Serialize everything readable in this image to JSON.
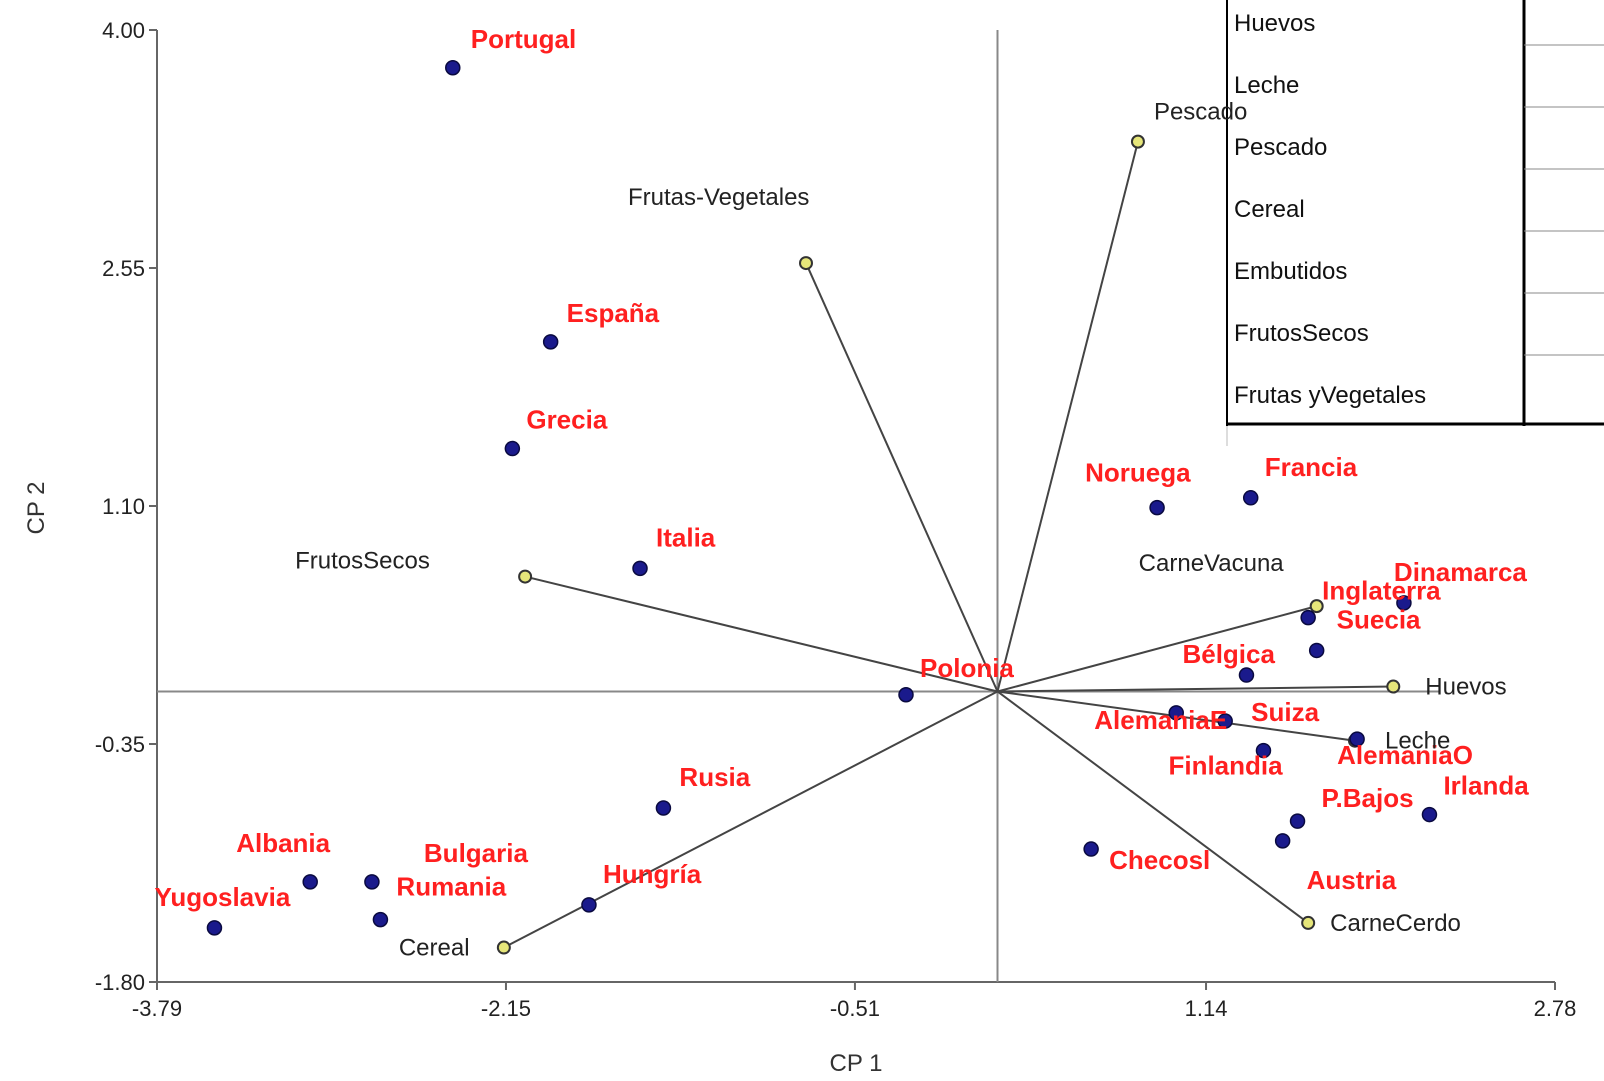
{
  "chart_data": {
    "type": "scatter",
    "title": "",
    "xlabel": "CP 1",
    "ylabel": "CP 2",
    "xlim": [
      -3.79,
      2.78
    ],
    "ylim": [
      -1.8,
      4.0
    ],
    "x_ticks": [
      "-3.79",
      "-2.15",
      "-0.51",
      "1.14",
      "2.78"
    ],
    "y_ticks": [
      "-1.80",
      "-0.35",
      "1.10",
      "2.55",
      "4.00"
    ],
    "reference_lines": {
      "x": 0.16,
      "y": -0.03
    },
    "grid": false,
    "colors": {
      "country_point": "#1a1a8c",
      "country_label": "#ff2020",
      "variable_point": "#e6e67a",
      "variable_label": "#222222",
      "axis": "#888888",
      "vector_line": "#444444"
    },
    "countries": [
      {
        "name": "Portugal",
        "x": -2.4,
        "y": 3.77
      },
      {
        "name": "España",
        "x": -1.94,
        "y": 2.1
      },
      {
        "name": "Grecia",
        "x": -2.12,
        "y": 1.45
      },
      {
        "name": "Italia",
        "x": -1.52,
        "y": 0.72
      },
      {
        "name": "Noruega",
        "x": 0.91,
        "y": 1.09
      },
      {
        "name": "Francia",
        "x": 1.35,
        "y": 1.15
      },
      {
        "name": "Dinamarca",
        "x": 2.07,
        "y": 0.51
      },
      {
        "name": "Inglaterra",
        "x": 1.62,
        "y": 0.42
      },
      {
        "name": "Suecia",
        "x": 1.66,
        "y": 0.22
      },
      {
        "name": "Bélgica",
        "x": 1.33,
        "y": 0.07
      },
      {
        "name": "Polonia",
        "x": -0.27,
        "y": -0.05
      },
      {
        "name": "AlemaniaE",
        "x": 1.0,
        "y": -0.16
      },
      {
        "name": "Suiza",
        "x": 1.23,
        "y": -0.21
      },
      {
        "name": "AlemaniaO",
        "x": 1.85,
        "y": -0.32
      },
      {
        "name": "Finlandia",
        "x": 1.41,
        "y": -0.39
      },
      {
        "name": "P.Bajos",
        "x": 1.57,
        "y": -0.82
      },
      {
        "name": "Irlanda",
        "x": 2.19,
        "y": -0.78
      },
      {
        "name": "Austria",
        "x": 1.5,
        "y": -0.94
      },
      {
        "name": "Checosl",
        "x": 0.6,
        "y": -0.99
      },
      {
        "name": "Rusia",
        "x": -1.41,
        "y": -0.74
      },
      {
        "name": "Hungría",
        "x": -1.76,
        "y": -1.33
      },
      {
        "name": "Albania",
        "x": -3.07,
        "y": -1.19
      },
      {
        "name": "Bulgaria",
        "x": -2.78,
        "y": -1.19
      },
      {
        "name": "Rumania",
        "x": -2.74,
        "y": -1.42
      },
      {
        "name": "Yugoslavia",
        "x": -3.52,
        "y": -1.47
      }
    ],
    "variables": [
      {
        "name": "Pescado",
        "x": 0.82,
        "y": 3.32
      },
      {
        "name": "Frutas-Vegetales",
        "x": -0.74,
        "y": 2.58
      },
      {
        "name": "FrutosSecos",
        "x": -2.06,
        "y": 0.67
      },
      {
        "name": "CarneVacuna",
        "x": 1.66,
        "y": 0.49
      },
      {
        "name": "Huevos",
        "x": 2.02,
        "y": -0.0
      },
      {
        "name": "Leche",
        "x": 1.84,
        "y": -0.33
      },
      {
        "name": "CarneCerdo",
        "x": 1.62,
        "y": -1.44
      },
      {
        "name": "Cereal",
        "x": -2.16,
        "y": -1.59
      }
    ]
  },
  "legend_table": {
    "rows": [
      "Huevos",
      "Leche",
      "Pescado",
      "Cereal",
      "Embutidos",
      "FrutosSecos",
      "Frutas yVegetales"
    ]
  }
}
